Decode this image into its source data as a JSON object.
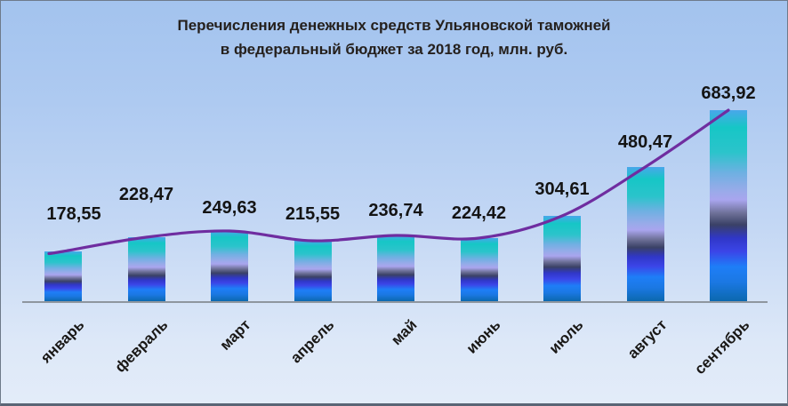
{
  "title": {
    "line1": "Перечисления денежных средств Ульяновской таможней",
    "line2": "в федеральный бюджет за 2018 год, млн. руб."
  },
  "chart_data": {
    "type": "bar",
    "title": "Перечисления денежных средств Ульяновской таможней в федеральный бюджет за 2018 год, млн. руб.",
    "categories": [
      "январь",
      "февраль",
      "март",
      "апрель",
      "май",
      "июнь",
      "июль",
      "август",
      "сентябрь"
    ],
    "values": [
      178.55,
      228.47,
      249.63,
      215.55,
      236.74,
      224.42,
      304.61,
      480.47,
      683.92
    ],
    "value_labels": [
      "178,55",
      "228,47",
      "249,63",
      "215,55",
      "236,74",
      "224,42",
      "304,61",
      "480,47",
      "683,92"
    ],
    "unit": "млн. руб.",
    "year": "2018",
    "xlabel": "",
    "ylabel": "",
    "ylim": [
      0,
      700
    ],
    "grid": false,
    "legend": false,
    "trend_line": {
      "type": "smooth-line",
      "series_name": "trend",
      "values": [
        178.55,
        228.47,
        249.63,
        215.55,
        236.74,
        224.42,
        304.61,
        480.47,
        683.92
      ],
      "color": "#6f2da0"
    },
    "colors": {
      "bar_top": "#16c6c6",
      "bar_mid": "#a9a5ee",
      "bar_dark": "#3037c8",
      "bar_bottom": "#0b68ae",
      "line": "#6f2da0",
      "axis": "#8f969f",
      "background_top": "#a3c3ee",
      "background_bottom": "#e3ecf9",
      "text": "#141414"
    }
  }
}
